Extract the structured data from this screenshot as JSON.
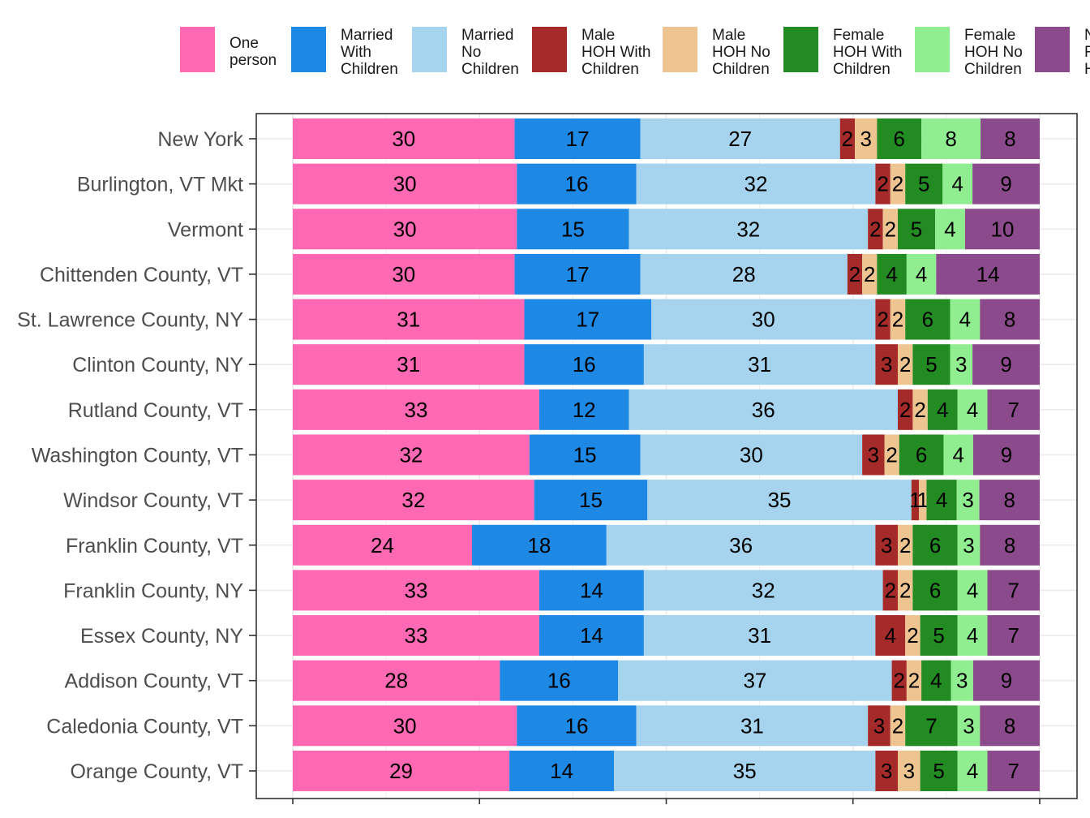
{
  "chart_data": {
    "type": "bar",
    "orientation": "horizontal",
    "stacked": true,
    "normalized": true,
    "legend_position": "top",
    "grid": true,
    "categories": [
      "New York",
      "Burlington, VT Mkt",
      "Vermont",
      "Chittenden County, VT",
      "St. Lawrence County, NY",
      "Clinton County, NY",
      "Rutland County, VT",
      "Washington County, VT",
      "Windsor County, VT",
      "Franklin County, VT",
      "Franklin County, NY",
      "Essex County, NY",
      "Addison County, VT",
      "Caledonia County, VT",
      "Orange County, VT"
    ],
    "series": [
      {
        "name": "One person",
        "legend_lines": [
          "One",
          "person"
        ],
        "color": "#FF69B4",
        "values": [
          30,
          30,
          30,
          30,
          31,
          31,
          33,
          32,
          32,
          24,
          33,
          33,
          28,
          30,
          29
        ]
      },
      {
        "name": "Married With Children",
        "legend_lines": [
          "Married",
          "With",
          "Children"
        ],
        "color": "#1E88E5",
        "values": [
          17,
          16,
          15,
          17,
          17,
          16,
          12,
          15,
          15,
          18,
          14,
          14,
          16,
          16,
          14
        ]
      },
      {
        "name": "Married No Children",
        "legend_lines": [
          "Married",
          "No",
          "Children"
        ],
        "color": "#A6D3ED",
        "values": [
          27,
          32,
          32,
          28,
          30,
          31,
          36,
          30,
          35,
          36,
          32,
          31,
          37,
          31,
          35
        ]
      },
      {
        "name": "Male HOH With Children",
        "legend_lines": [
          "Male",
          "HOH With",
          "Children"
        ],
        "color": "#A52A2A",
        "values": [
          2,
          2,
          2,
          2,
          2,
          3,
          2,
          3,
          1,
          3,
          2,
          4,
          2,
          3,
          3
        ]
      },
      {
        "name": "Male HOH No Children",
        "legend_lines": [
          "Male",
          "HOH No",
          "Children"
        ],
        "color": "#EEC591",
        "values": [
          3,
          2,
          2,
          2,
          2,
          2,
          2,
          2,
          1,
          2,
          2,
          2,
          2,
          2,
          3
        ]
      },
      {
        "name": "Female HOH With Children",
        "legend_lines": [
          "Female",
          "HOH With",
          "Children"
        ],
        "color": "#228B22",
        "values": [
          6,
          5,
          5,
          4,
          6,
          5,
          4,
          6,
          4,
          6,
          6,
          5,
          4,
          7,
          5
        ]
      },
      {
        "name": "Female HOH No Children",
        "legend_lines": [
          "Female",
          "HOH No",
          "Children"
        ],
        "color": "#90EE90",
        "values": [
          8,
          4,
          4,
          4,
          4,
          3,
          4,
          4,
          3,
          3,
          4,
          4,
          3,
          3,
          4
        ]
      },
      {
        "name": "Non-Family Household",
        "legend_lines": [
          "N",
          "F",
          "H"
        ],
        "color": "#8B4A8B",
        "values": [
          8,
          9,
          10,
          14,
          8,
          9,
          7,
          9,
          8,
          8,
          7,
          7,
          9,
          8,
          7
        ]
      }
    ]
  }
}
